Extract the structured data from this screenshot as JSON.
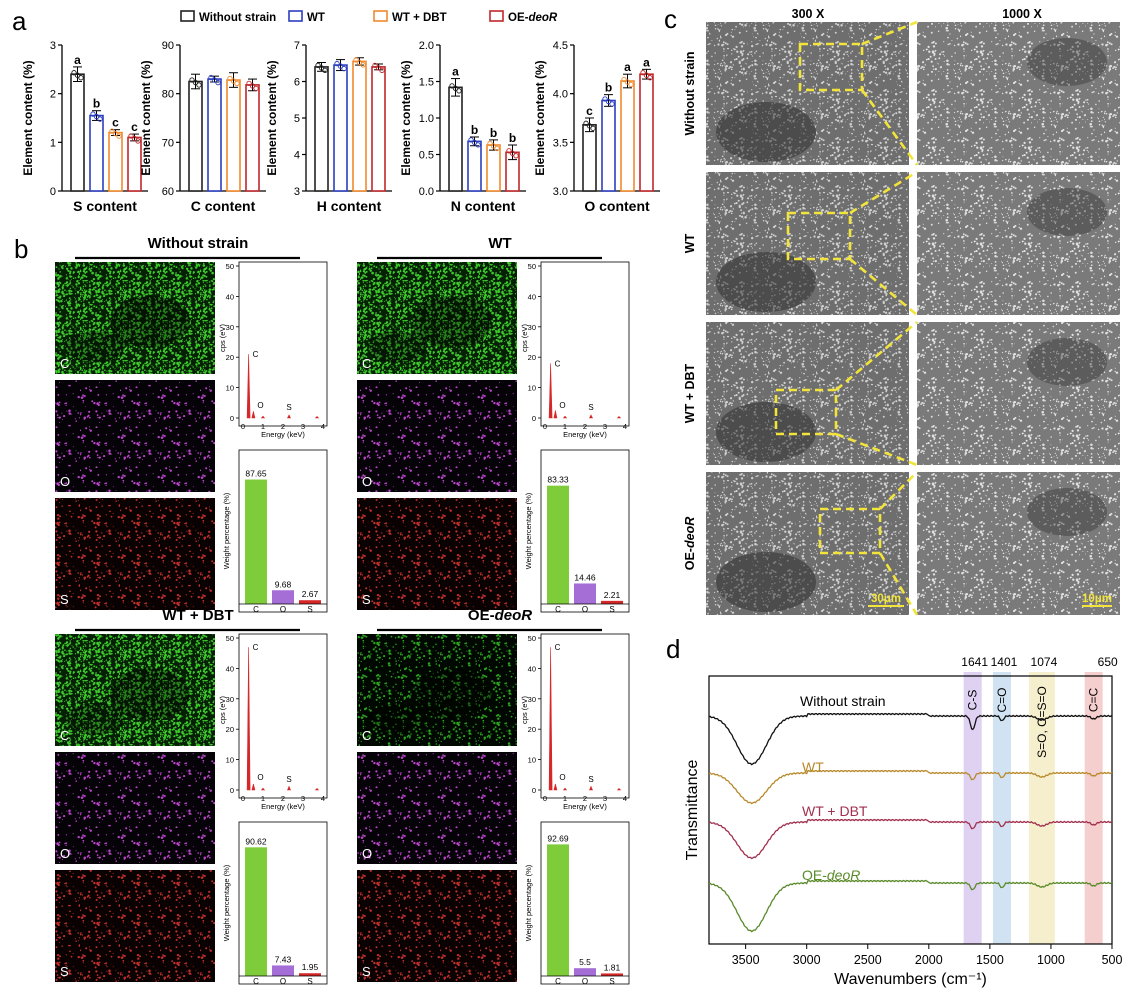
{
  "panel_labels": {
    "a": "a",
    "b": "b",
    "c": "c",
    "d": "d"
  },
  "legend": [
    {
      "name": "Without strain",
      "color": "#222222"
    },
    {
      "name": "WT",
      "color": "#2b3fc0"
    },
    {
      "name": "WT + DBT",
      "color": "#f08a2e"
    },
    {
      "name": "OE-deoR",
      "color": "#c0282b"
    }
  ],
  "colors": {
    "green": "#7fcc3a",
    "purple": "#a46ed6",
    "red": "#d62728",
    "dashed_box": "#f2e43a"
  },
  "chart_data": [
    {
      "type": "bar",
      "panel": "a",
      "categories": [
        "Without strain",
        "WT",
        "WT + DBT",
        "OE-deoR"
      ],
      "values": [
        2.4,
        1.55,
        1.2,
        1.1
      ],
      "errors": [
        0.15,
        0.1,
        0.06,
        0.07
      ],
      "letters": [
        "a",
        "b",
        "c",
        "c"
      ],
      "xlabel": "S content",
      "ylabel": "Element content (%)",
      "ylim": [
        0,
        3
      ],
      "yticks": [
        "0",
        "1",
        "2",
        "3"
      ]
    },
    {
      "type": "bar",
      "panel": "a",
      "categories": [
        "Without strain",
        "WT",
        "WT + DBT",
        "OE-deoR"
      ],
      "values": [
        82.5,
        83.0,
        82.8,
        81.8
      ],
      "errors": [
        1.5,
        0.6,
        1.5,
        1.2
      ],
      "letters": [
        "",
        "",
        "",
        ""
      ],
      "xlabel": "C content",
      "ylabel": "Element content (%)",
      "ylim": [
        60,
        90
      ],
      "yticks": [
        "60",
        "70",
        "80",
        "90"
      ]
    },
    {
      "type": "bar",
      "panel": "a",
      "categories": [
        "Without strain",
        "WT",
        "WT + DBT",
        "OE-deoR"
      ],
      "values": [
        6.4,
        6.45,
        6.55,
        6.4
      ],
      "errors": [
        0.12,
        0.15,
        0.1,
        0.08
      ],
      "letters": [
        "",
        "",
        "",
        ""
      ],
      "xlabel": "H content",
      "ylabel": "Element content (%)",
      "ylim": [
        3,
        7
      ],
      "yticks": [
        "3",
        "4",
        "5",
        "6",
        "7"
      ]
    },
    {
      "type": "bar",
      "panel": "a",
      "categories": [
        "Without strain",
        "WT",
        "WT + DBT",
        "OE-deoR"
      ],
      "values": [
        1.42,
        0.68,
        0.63,
        0.53
      ],
      "errors": [
        0.12,
        0.06,
        0.07,
        0.1
      ],
      "letters": [
        "a",
        "b",
        "b",
        "b"
      ],
      "xlabel": "N content",
      "ylabel": "Element content (%)",
      "ylim": [
        0,
        2
      ],
      "yticks": [
        "0.0",
        "0.5",
        "1.0",
        "1.5",
        "2.0"
      ]
    },
    {
      "type": "bar",
      "panel": "a",
      "categories": [
        "Without strain",
        "WT",
        "WT + DBT",
        "OE-deoR"
      ],
      "values": [
        3.68,
        3.93,
        4.13,
        4.2
      ],
      "errors": [
        0.07,
        0.06,
        0.07,
        0.05
      ],
      "letters": [
        "c",
        "b",
        "a",
        "a"
      ],
      "xlabel": "O content",
      "ylabel": "Element content (%)",
      "ylim": [
        3,
        4.5
      ],
      "yticks": [
        "3.0",
        "3.5",
        "4.0",
        "4.5"
      ]
    },
    {
      "type": "bar",
      "panel": "b",
      "title": "Without strain",
      "categories": [
        "C",
        "O",
        "S"
      ],
      "values": [
        87.65,
        9.68,
        2.67
      ],
      "value_labels": [
        "87.65",
        "9.68",
        "2.67"
      ],
      "ylabel": "Weight percentage (%)"
    },
    {
      "type": "bar",
      "panel": "b",
      "title": "WT",
      "categories": [
        "C",
        "O",
        "S"
      ],
      "values": [
        83.33,
        14.46,
        2.21
      ],
      "value_labels": [
        "83.33",
        "14.46",
        "2.21"
      ],
      "ylabel": "Weight percentage (%)"
    },
    {
      "type": "bar",
      "panel": "b",
      "title": "WT + DBT",
      "categories": [
        "C",
        "O",
        "S"
      ],
      "values": [
        90.62,
        7.43,
        1.95
      ],
      "value_labels": [
        "90.62",
        "7.43",
        "1.95"
      ],
      "ylabel": "Weight percentage (%)"
    },
    {
      "type": "bar",
      "panel": "b",
      "title": "OE-deoR",
      "categories": [
        "C",
        "O",
        "S"
      ],
      "values": [
        92.69,
        5.5,
        1.81
      ],
      "value_labels": [
        "92.69",
        "5.5",
        "1.81"
      ],
      "ylabel": "Weight percentage (%)"
    },
    {
      "type": "line",
      "panel": "b-spectra",
      "xlabel": "Energy (keV)",
      "ylabel": "cps (eV)",
      "xticks": [
        "0",
        "1",
        "2",
        "3",
        "4"
      ],
      "yticks": [
        "0",
        "10",
        "20",
        "30",
        "40",
        "50"
      ],
      "peak_labels": [
        "C",
        "O",
        "S"
      ],
      "peaks": [
        {
          "sample": "Without strain",
          "C": 21,
          "O": 2.2,
          "S": 1.0
        },
        {
          "sample": "WT",
          "C": 18,
          "O": 2.5,
          "S": 1.0
        },
        {
          "sample": "WT + DBT",
          "C": 47,
          "O": 2.0,
          "S": 1.2
        },
        {
          "sample": "OE-deoR",
          "C": 47,
          "O": 2.0,
          "S": 1.2
        }
      ]
    },
    {
      "type": "line",
      "panel": "d",
      "xlabel": "Wavenumbers (cm⁻¹)",
      "ylabel": "Transmittance",
      "xlim": [
        3800,
        500
      ],
      "xticks": [
        "3500",
        "3000",
        "2500",
        "2000",
        "1500",
        "1000",
        "500"
      ],
      "series": [
        {
          "name": "Without strain",
          "color": "#111111"
        },
        {
          "name": "WT",
          "color": "#b8892b"
        },
        {
          "name": "WT + DBT",
          "color": "#a1304e"
        },
        {
          "name": "OE-deoR",
          "color": "#5a8a2a"
        }
      ],
      "bands": [
        {
          "center": 1641,
          "label": "C-S",
          "color": "#d9c9f0"
        },
        {
          "center": 1401,
          "label": "C=O",
          "color": "#c9ddf0"
        },
        {
          "center": 1074,
          "label": "S=O, O=S=O",
          "color": "#f5ecc4"
        },
        {
          "center": 650,
          "label": "C=C",
          "color": "#f3c6c6"
        }
      ]
    }
  ],
  "element_maps": [
    "C",
    "O",
    "S"
  ],
  "sem": {
    "column_titles": [
      "300 X",
      "1000  X"
    ],
    "rows": [
      "Without strain",
      "WT",
      "WT + DBT",
      "OE-deoR"
    ],
    "scale_bars": [
      "30μm",
      "10μm"
    ]
  }
}
